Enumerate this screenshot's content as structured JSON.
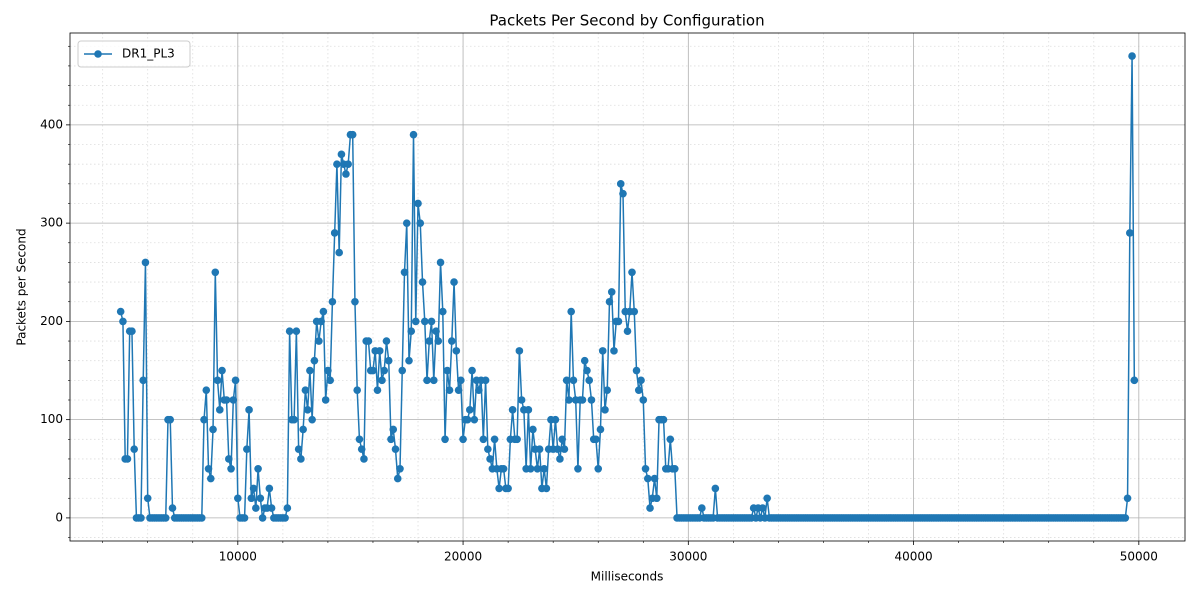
{
  "chart_data": {
    "type": "line",
    "title": "Packets Per Second by Configuration",
    "x_label": "Milliseconds",
    "y_label": "Packets per Second",
    "x": [
      4800,
      4900,
      5000,
      5100,
      5200,
      5300,
      5400,
      5500,
      5600,
      5700,
      5800,
      5900,
      6000,
      6100,
      6200,
      6300,
      6400,
      6500,
      6600,
      6700,
      6800,
      6900,
      7000,
      7100,
      7200,
      7300,
      7400,
      7500,
      7600,
      7700,
      7800,
      7900,
      8000,
      8100,
      8200,
      8300,
      8400,
      8500,
      8600,
      8700,
      8800,
      8900,
      9000,
      9100,
      9200,
      9300,
      9400,
      9500,
      9600,
      9700,
      9800,
      9900,
      10000,
      10100,
      10200,
      10300,
      10400,
      10500,
      10600,
      10700,
      10800,
      10900,
      11000,
      11100,
      11200,
      11300,
      11400,
      11500,
      11600,
      11700,
      11800,
      11900,
      12000,
      12100,
      12200,
      12300,
      12400,
      12500,
      12600,
      12700,
      12800,
      12900,
      13000,
      13100,
      13200,
      13300,
      13400,
      13500,
      13600,
      13700,
      13800,
      13900,
      14000,
      14100,
      14200,
      14300,
      14400,
      14500,
      14600,
      14700,
      14800,
      14900,
      15000,
      15100,
      15200,
      15300,
      15400,
      15500,
      15600,
      15700,
      15800,
      15900,
      16000,
      16100,
      16200,
      16300,
      16400,
      16500,
      16600,
      16700,
      16800,
      16900,
      17000,
      17100,
      17200,
      17300,
      17400,
      17500,
      17600,
      17700,
      17800,
      17900,
      18000,
      18100,
      18200,
      18300,
      18400,
      18500,
      18600,
      18700,
      18800,
      18900,
      19000,
      19100,
      19200,
      19300,
      19400,
      19500,
      19600,
      19700,
      19800,
      19900,
      20000,
      20100,
      20200,
      20300,
      20400,
      20500,
      20600,
      20700,
      20800,
      20900,
      21000,
      21100,
      21200,
      21300,
      21400,
      21500,
      21600,
      21700,
      21800,
      21900,
      22000,
      22100,
      22200,
      22300,
      22400,
      22500,
      22600,
      22700,
      22800,
      22900,
      23000,
      23100,
      23200,
      23300,
      23400,
      23500,
      23600,
      23700,
      23800,
      23900,
      24000,
      24100,
      24200,
      24300,
      24400,
      24500,
      24600,
      24700,
      24800,
      24900,
      25000,
      25100,
      25200,
      25300,
      25400,
      25500,
      25600,
      25700,
      25800,
      25900,
      26000,
      26100,
      26200,
      26300,
      26400,
      26500,
      26600,
      26700,
      26800,
      26900,
      27000,
      27100,
      27200,
      27300,
      27400,
      27500,
      27600,
      27700,
      27800,
      27900,
      28000,
      28100,
      28200,
      28300,
      28400,
      28500,
      28600,
      28700,
      28800,
      28900,
      29000,
      29100,
      29200,
      29300,
      29400,
      29500,
      29600,
      29700,
      29800,
      29900,
      30000,
      30100,
      30200,
      30300,
      30400,
      30500,
      30600,
      30700,
      30800,
      30900,
      31000,
      31100,
      31200,
      31300,
      31400,
      31500,
      31600,
      31700,
      31800,
      31900,
      32000,
      32100,
      32200,
      32300,
      32400,
      32500,
      32600,
      32700,
      32800,
      32900,
      33000,
      33100,
      33200,
      33300,
      33400,
      33500,
      33600,
      33700,
      33800,
      33900,
      34000,
      34100,
      34200,
      34300,
      34400,
      34500,
      34600,
      34700,
      34800,
      34900,
      35000,
      35100,
      35200,
      35300,
      35400,
      35500,
      35600,
      35700,
      35800,
      35900,
      36000,
      36100,
      36200,
      36300,
      36400,
      36500,
      36600,
      36700,
      36800,
      36900,
      37000,
      37100,
      37200,
      37300,
      37400,
      37500,
      37600,
      37700,
      37800,
      37900,
      38000,
      38100,
      38200,
      38300,
      38400,
      38500,
      38600,
      38700,
      38800,
      38900,
      39000,
      39100,
      39200,
      39300,
      39400,
      39500,
      39600,
      39700,
      39800,
      39900,
      40000,
      40100,
      40200,
      40300,
      40400,
      40500,
      40600,
      40700,
      40800,
      40900,
      41000,
      41100,
      41200,
      41300,
      41400,
      41500,
      41600,
      41700,
      41800,
      41900,
      42000,
      42100,
      42200,
      42300,
      42400,
      42500,
      42600,
      42700,
      42800,
      42900,
      43000,
      43100,
      43200,
      43300,
      43400,
      43500,
      43600,
      43700,
      43800,
      43900,
      44000,
      44100,
      44200,
      44300,
      44400,
      44500,
      44600,
      44700,
      44800,
      44900,
      45000,
      45100,
      45200,
      45300,
      45400,
      45500,
      45600,
      45700,
      45800,
      45900,
      46000,
      46100,
      46200,
      46300,
      46400,
      46500,
      46600,
      46700,
      46800,
      46900,
      47000,
      47100,
      47200,
      47300,
      47400,
      47500,
      47600,
      47700,
      47800,
      47900,
      48000,
      48100,
      48200,
      48300,
      48400,
      48500,
      48600,
      48700,
      48800,
      48900,
      49000,
      49100,
      49200,
      49300,
      49400,
      49500,
      49600,
      49700,
      49800
    ],
    "series": [
      {
        "name": "DR1_PL3",
        "color": "#1f77b4",
        "values": [
          210,
          200,
          60,
          60,
          190,
          190,
          70,
          0,
          0,
          0,
          140,
          260,
          20,
          0,
          0,
          0,
          0,
          0,
          0,
          0,
          0,
          100,
          100,
          10,
          0,
          0,
          0,
          0,
          0,
          0,
          0,
          0,
          0,
          0,
          0,
          0,
          0,
          100,
          130,
          50,
          40,
          90,
          250,
          140,
          110,
          150,
          120,
          120,
          60,
          50,
          120,
          140,
          20,
          0,
          0,
          0,
          70,
          110,
          20,
          30,
          10,
          50,
          20,
          0,
          10,
          10,
          30,
          10,
          0,
          0,
          0,
          0,
          0,
          0,
          10,
          190,
          100,
          100,
          190,
          70,
          60,
          90,
          130,
          110,
          150,
          100,
          160,
          200,
          180,
          200,
          210,
          120,
          150,
          140,
          220,
          290,
          360,
          270,
          370,
          360,
          350,
          360,
          390,
          390,
          220,
          130,
          80,
          70,
          60,
          180,
          180,
          150,
          150,
          170,
          130,
          170,
          140,
          150,
          180,
          160,
          80,
          90,
          70,
          40,
          50,
          150,
          250,
          300,
          160,
          190,
          390,
          200,
          320,
          300,
          240,
          200,
          140,
          180,
          200,
          140,
          190,
          180,
          260,
          210,
          80,
          150,
          130,
          180,
          240,
          170,
          130,
          140,
          80,
          100,
          100,
          110,
          150,
          100,
          140,
          130,
          140,
          80,
          140,
          70,
          60,
          50,
          80,
          50,
          30,
          50,
          50,
          30,
          30,
          80,
          110,
          80,
          80,
          170,
          120,
          110,
          50,
          110,
          50,
          90,
          70,
          50,
          70,
          30,
          50,
          30,
          70,
          100,
          70,
          100,
          70,
          60,
          80,
          70,
          140,
          120,
          210,
          140,
          120,
          50,
          120,
          120,
          160,
          150,
          140,
          120,
          80,
          80,
          50,
          90,
          170,
          110,
          130,
          220,
          230,
          170,
          200,
          200,
          340,
          330,
          210,
          190,
          210,
          250,
          210,
          150,
          130,
          140,
          120,
          50,
          40,
          10,
          20,
          40,
          20,
          100,
          100,
          100,
          50,
          50,
          80,
          50,
          50,
          0,
          0,
          0,
          0,
          0,
          0,
          0,
          0,
          0,
          0,
          0,
          10,
          0,
          0,
          0,
          0,
          0,
          30,
          0,
          0,
          0,
          0,
          0,
          0,
          0,
          0,
          0,
          0,
          0,
          0,
          0,
          0,
          0,
          0,
          10,
          0,
          10,
          0,
          10,
          0,
          20,
          0,
          0,
          0,
          0,
          0,
          0,
          0,
          0,
          0,
          0,
          0,
          0,
          0,
          0,
          0,
          0,
          0,
          0,
          0,
          0,
          0,
          0,
          0,
          0,
          0,
          0,
          0,
          0,
          0,
          0,
          0,
          0,
          0,
          0,
          0,
          0,
          0,
          0,
          0,
          0,
          0,
          0,
          0,
          0,
          0,
          0,
          0,
          0,
          0,
          0,
          0,
          0,
          0,
          0,
          0,
          0,
          0,
          0,
          0,
          0,
          0,
          0,
          0,
          0,
          0,
          0,
          0,
          0,
          0,
          0,
          0,
          0,
          0,
          0,
          0,
          0,
          0,
          0,
          0,
          0,
          0,
          0,
          0,
          0,
          0,
          0,
          0,
          0,
          0,
          0,
          0,
          0,
          0,
          0,
          0,
          0,
          0,
          0,
          0,
          0,
          0,
          0,
          0,
          0,
          0,
          0,
          0,
          0,
          0,
          0,
          0,
          0,
          0,
          0,
          0,
          0,
          0,
          0,
          0,
          0,
          0,
          0,
          0,
          0,
          0,
          0,
          0,
          0,
          0,
          0,
          0,
          0,
          0,
          0,
          0,
          0,
          0,
          0,
          0,
          0,
          0,
          0,
          0,
          0,
          0,
          0,
          0,
          0,
          0,
          0,
          0,
          0,
          0,
          0,
          0,
          0,
          0,
          0,
          0,
          20,
          290,
          470,
          140
        ]
      }
    ],
    "xlim": [
      2550,
      52050
    ],
    "xticks": [
      10000,
      20000,
      30000,
      40000,
      50000
    ],
    "xminorticks": [
      4000,
      6000,
      8000,
      12000,
      14000,
      16000,
      18000,
      22000,
      24000,
      26000,
      28000,
      32000,
      34000,
      36000,
      38000,
      42000,
      44000,
      46000,
      48000
    ],
    "ylim": [
      -23.5,
      493.5
    ],
    "yticks": [
      0,
      100,
      200,
      300,
      400
    ],
    "yminorticks": [
      -20,
      20,
      40,
      60,
      80,
      120,
      140,
      160,
      180,
      220,
      240,
      260,
      280,
      320,
      340,
      360,
      380,
      420,
      440,
      460,
      480
    ],
    "grid": true,
    "legend": "upper left"
  }
}
